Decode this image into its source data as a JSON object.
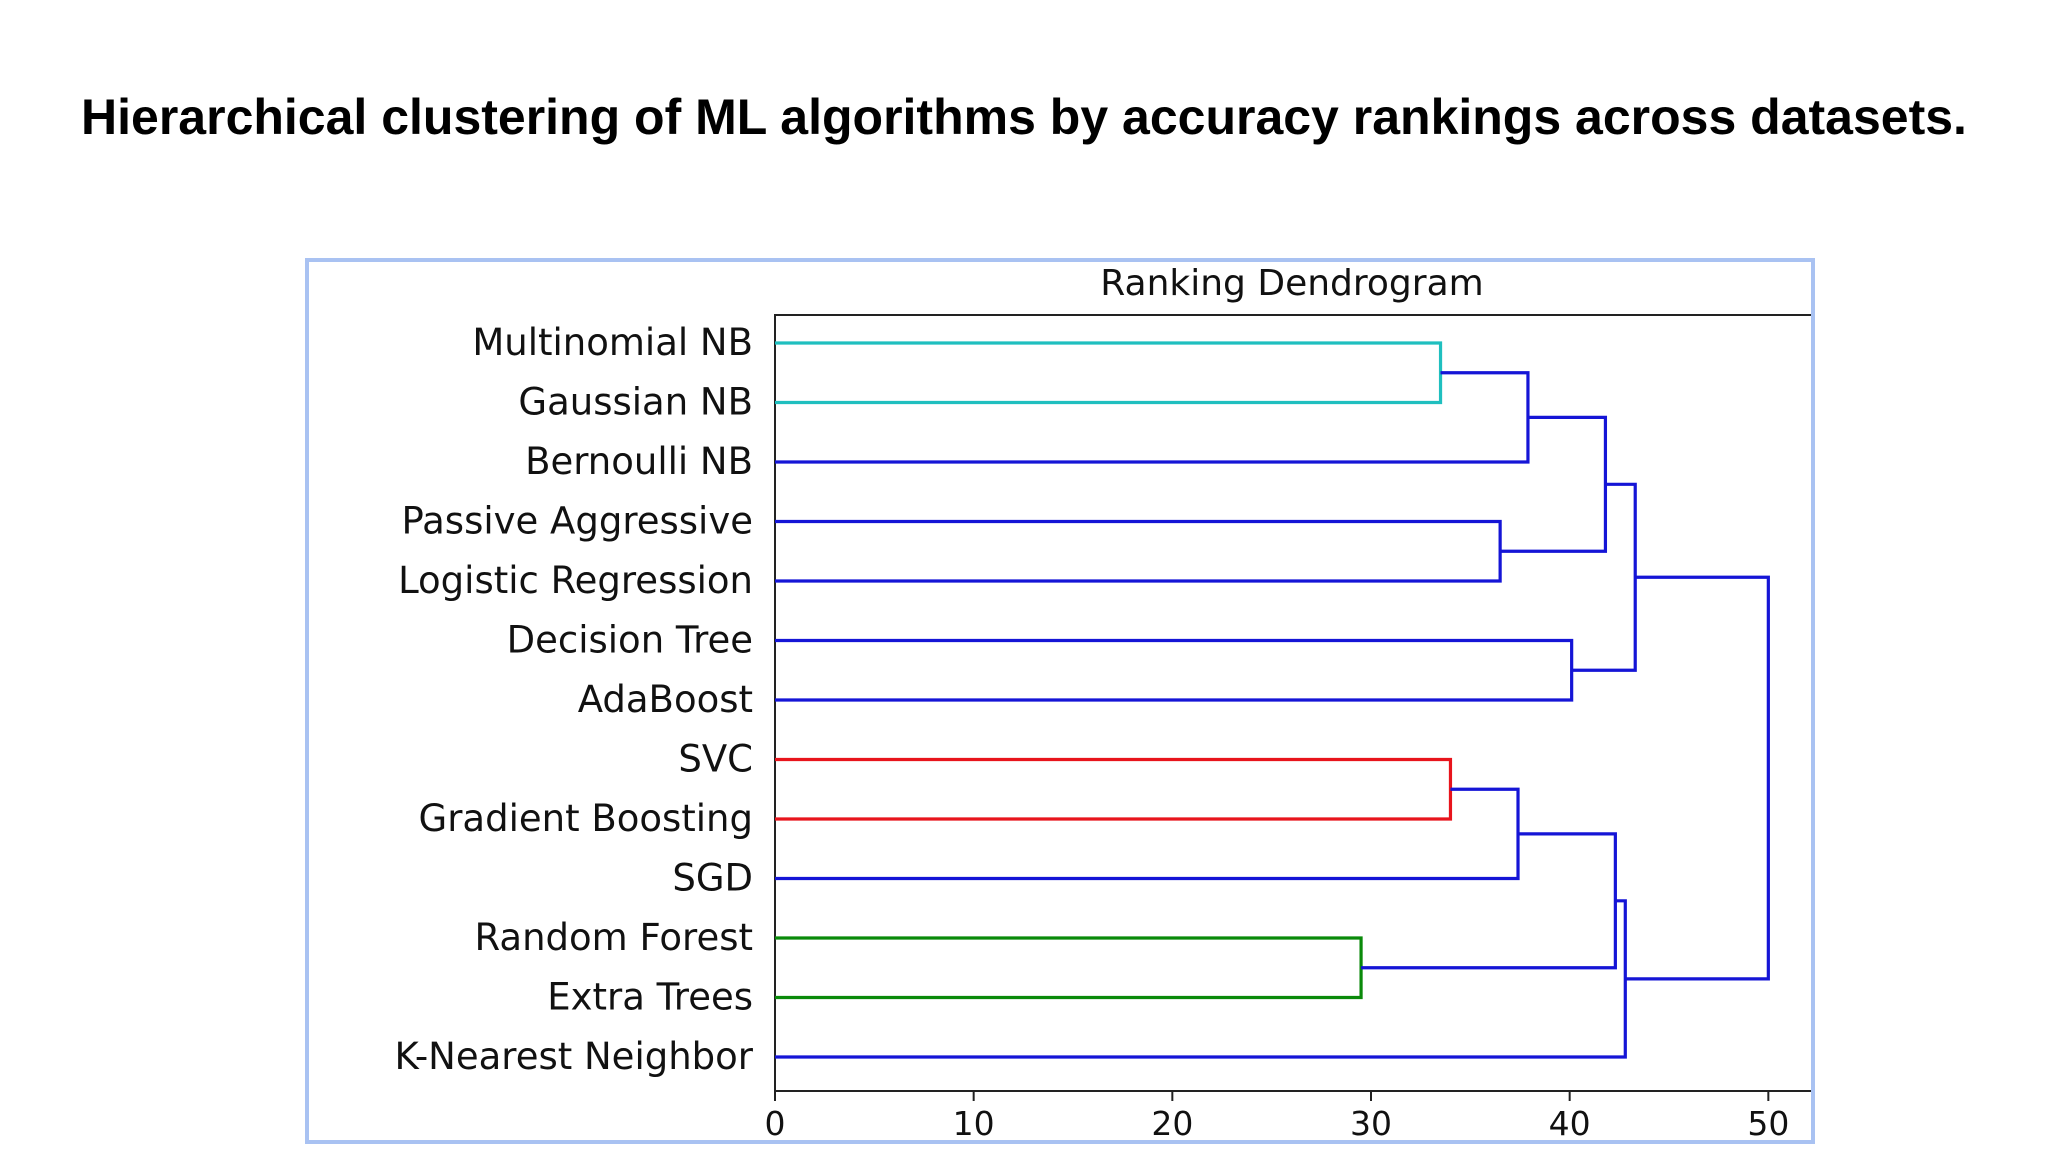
{
  "slide": {
    "title": "Hierarchical clustering of ML algorithms by accuracy rankings across datasets."
  },
  "chart_data": {
    "type": "dendrogram",
    "title": "Ranking Dendrogram",
    "orientation": "left",
    "xlabel": "",
    "ylabel": "",
    "xlim": [
      0,
      52.5
    ],
    "xticks": [
      0,
      10,
      20,
      30,
      40,
      50
    ],
    "leaves": [
      "Multinomial NB",
      "Gaussian NB",
      "Bernoulli NB",
      "Passive Aggressive",
      "Logistic Regression",
      "Decision Tree",
      "AdaBoost",
      "SVC",
      "Gradient Boosting",
      "SGD",
      "Random Forest",
      "Extra Trees",
      "K-Nearest Neighbor"
    ],
    "merges": [
      {
        "left": "Multinomial NB",
        "right": "Gaussian NB",
        "distance": 33.5,
        "color": "#1fbfbf"
      },
      {
        "left": "SVC",
        "right": "Gradient Boosting",
        "distance": 34.0,
        "color": "#e8141c"
      },
      {
        "left": "Random Forest",
        "right": "Extra Trees",
        "distance": 29.5,
        "color": "#0a8a0a"
      },
      {
        "left": "Passive Aggressive",
        "right": "Logistic Regression",
        "distance": 36.5,
        "color": "#1515d6"
      },
      {
        "left": "Multinomial NB + Gaussian NB",
        "right": "Bernoulli NB",
        "distance": 37.9,
        "color": "#1515d6"
      },
      {
        "left": "Decision Tree",
        "right": "AdaBoost",
        "distance": 40.1,
        "color": "#1515d6"
      },
      {
        "left": "SVC + Gradient Boosting",
        "right": "SGD",
        "distance": 37.4,
        "color": "#1515d6"
      },
      {
        "left": "NB group",
        "right": "Passive Aggressive + Logistic Regression",
        "distance": 41.8,
        "color": "#1515d6"
      },
      {
        "left": "SVC + Gradient Boosting + SGD",
        "right": "Random Forest + Extra Trees",
        "distance": 42.3,
        "color": "#1515d6"
      },
      {
        "left": "NB/linear group",
        "right": "Decision Tree + AdaBoost",
        "distance": 43.3,
        "color": "#1515d6"
      },
      {
        "left": "SVC/SGD/tree-ensemble group",
        "right": "K-Nearest Neighbor",
        "distance": 42.8,
        "color": "#1515d6"
      },
      {
        "left": "upper group",
        "right": "lower group",
        "distance": 50.0,
        "color": "#1515d6"
      }
    ]
  }
}
